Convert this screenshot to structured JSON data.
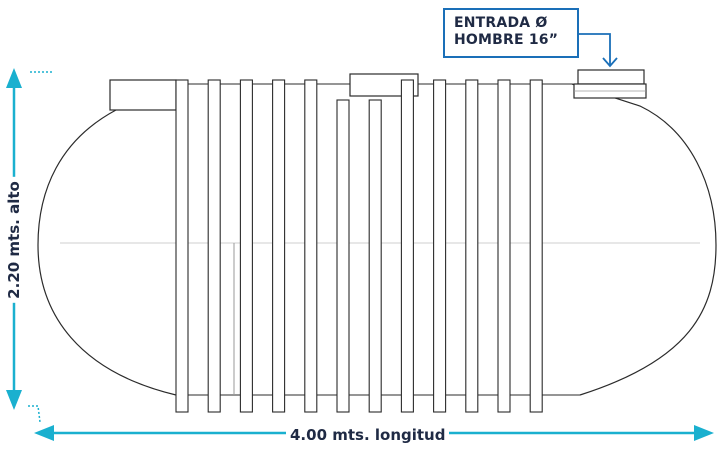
{
  "callout": {
    "line1": "ENTRADA Ø",
    "line2": "HOMBRE 16”"
  },
  "dimensions": {
    "length_label": "4.00 mts. longitud",
    "height_label": "2.20 mts. alto"
  },
  "colors": {
    "accent": "#1ab0cf",
    "callout_border": "#1a6fb8",
    "text": "#1f2a44",
    "outline": "#2b2b2b"
  }
}
